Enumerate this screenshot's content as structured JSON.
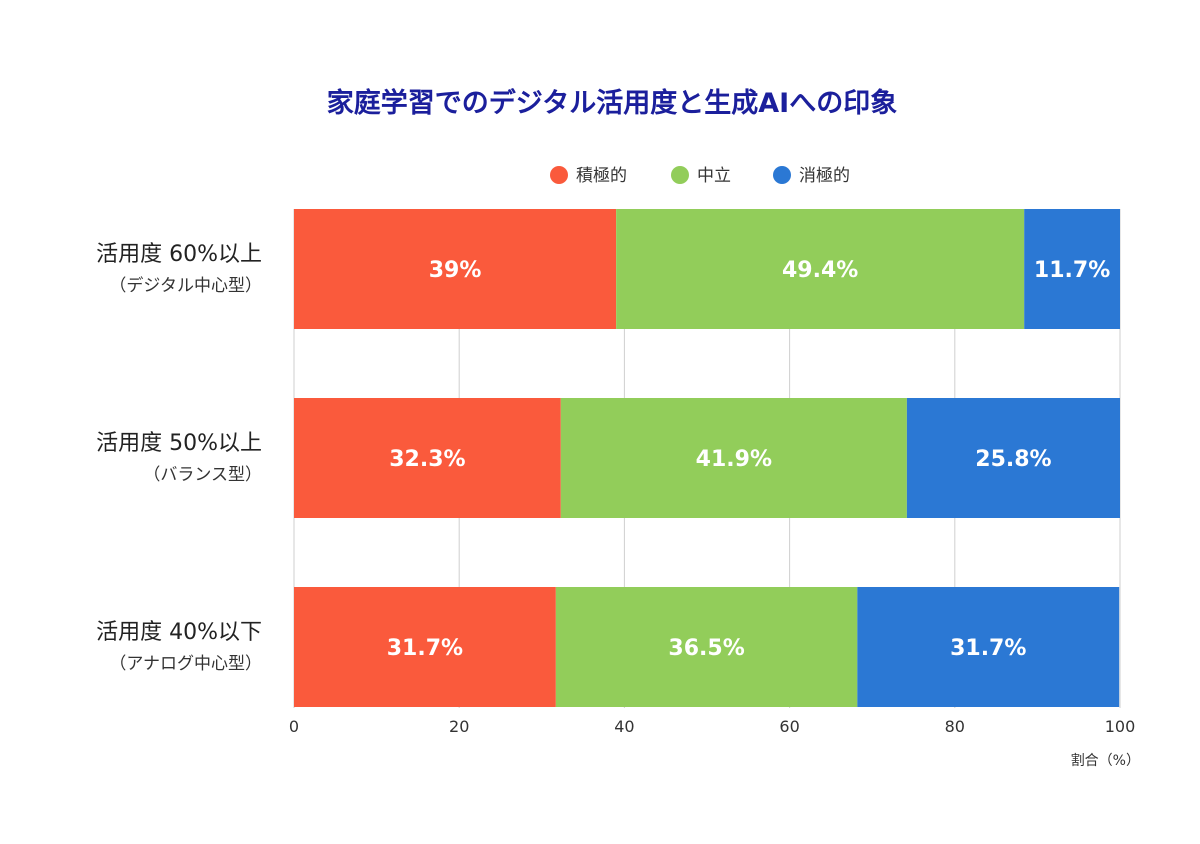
{
  "chart_data": {
    "type": "bar",
    "orientation": "horizontal",
    "stacked": true,
    "title": "家庭学習でのデジタル活用度と生成AIへの印象",
    "categories": [
      {
        "label": "活用度 60%以上",
        "sublabel": "（デジタル中心型）"
      },
      {
        "label": "活用度 50%以上",
        "sublabel": "（バランス型）"
      },
      {
        "label": "活用度 40%以下",
        "sublabel": "（アナログ中心型）"
      }
    ],
    "series": [
      {
        "name": "積極的",
        "color": "#fa5a3c",
        "values": [
          39,
          32.3,
          31.7
        ],
        "labels": [
          "39%",
          "32.3%",
          "31.7%"
        ]
      },
      {
        "name": "中立",
        "color": "#92cd5a",
        "values": [
          49.4,
          41.9,
          36.5
        ],
        "labels": [
          "49.4%",
          "41.9%",
          "36.5%"
        ]
      },
      {
        "name": "消極的",
        "color": "#2b78d4",
        "values": [
          11.7,
          25.8,
          31.7
        ],
        "labels": [
          "11.7%",
          "25.8%",
          "31.7%"
        ]
      }
    ],
    "xlim": [
      0,
      100
    ],
    "xticks": [
      0,
      20,
      40,
      60,
      80,
      100
    ],
    "xlabel": "割合（%）",
    "ylabel": "",
    "grid": "vertical",
    "legend_position": "top-center"
  }
}
